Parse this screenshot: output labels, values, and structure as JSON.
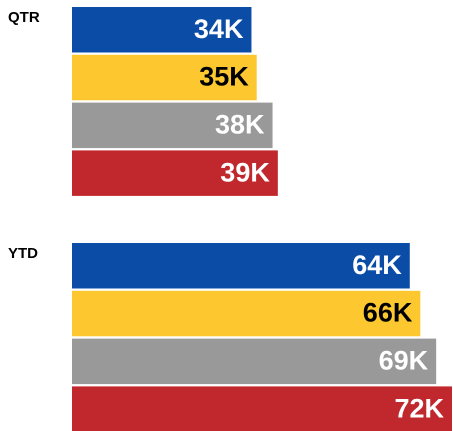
{
  "chart_data": {
    "type": "bar",
    "orientation": "horizontal",
    "categories": [
      "QTR",
      "YTD"
    ],
    "series": [
      {
        "color": "#0a4ca6",
        "label_color": "#ffffff",
        "values": [
          34000,
          64000
        ],
        "value_labels": [
          "34K",
          "64K"
        ]
      },
      {
        "color": "#fdc82f",
        "label_color": "#000000",
        "values": [
          35000,
          66000
        ],
        "value_labels": [
          "35K",
          "66K"
        ]
      },
      {
        "color": "#999999",
        "label_color": "#ffffff",
        "values": [
          38000,
          69000
        ],
        "value_labels": [
          "38K",
          "69K"
        ]
      },
      {
        "color": "#c0282d",
        "label_color": "#ffffff",
        "values": [
          39000,
          72000
        ],
        "value_labels": [
          "39K",
          "72K"
        ]
      }
    ]
  }
}
